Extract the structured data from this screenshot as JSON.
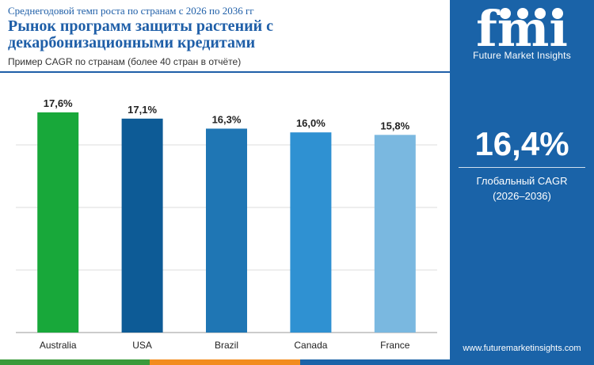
{
  "header": {
    "subtitle": "Среднегодовой темп роста по странам с 2026 по 2036 гг",
    "title": "Рынок программ защиты растений с декарбонизационными кредитами",
    "note": "Пример CAGR по странам (более 40 стран в отчёте)"
  },
  "sidebar": {
    "logo_text": "fmi",
    "brand": "Future Market Insights",
    "global_value": "16,4%",
    "global_label_line1": "Глобальный CAGR",
    "global_label_line2": "(2026–2036)",
    "url": "www.futuremarketinsights.com"
  },
  "colors": {
    "title": "#1f5fa8",
    "sidebar": "#1a63a8",
    "footbar": [
      "#3a9a3a",
      "#f28c1f",
      "#1a63a8"
    ]
  },
  "chart_data": {
    "type": "bar",
    "categories": [
      "Australia",
      "USA",
      "Brazil",
      "Canada",
      "France"
    ],
    "values": [
      17.6,
      17.1,
      16.3,
      16.0,
      15.8
    ],
    "value_labels": [
      "17,6%",
      "17,1%",
      "16,3%",
      "16,0%",
      "15,8%"
    ],
    "bar_colors": [
      "#18a83a",
      "#0d5b96",
      "#1f76b4",
      "#2f91d2",
      "#7ab8e0"
    ],
    "ylim": [
      0,
      20
    ],
    "y_ticks": [
      0,
      5,
      10,
      15
    ],
    "grid": true,
    "title": "",
    "xlabel": "",
    "ylabel": ""
  }
}
